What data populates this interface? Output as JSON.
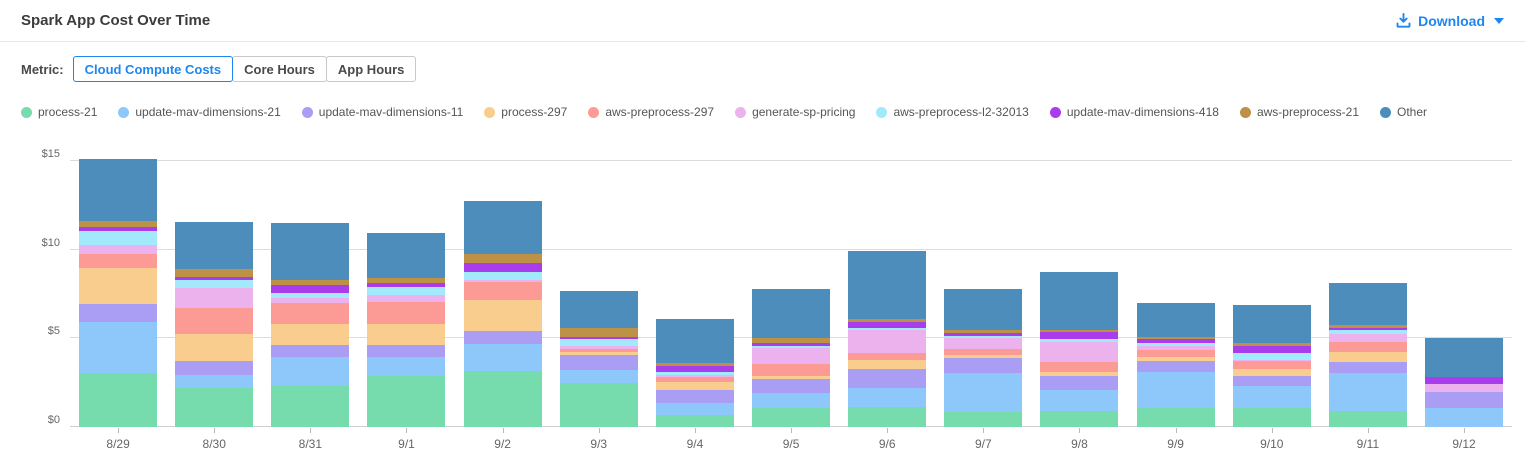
{
  "header": {
    "title": "Spark App Cost Over Time",
    "download_label": "Download"
  },
  "metric": {
    "label": "Metric:",
    "options": [
      {
        "label": "Cloud Compute Costs",
        "selected": true
      },
      {
        "label": "Core Hours",
        "selected": false
      },
      {
        "label": "App Hours",
        "selected": false
      }
    ]
  },
  "colors": {
    "accent_blue": "#1e86f0",
    "gridline": "#dcdcdc",
    "axis_text": "#666666"
  },
  "chart_data": {
    "type": "bar",
    "stacked": true,
    "title": "Spark App Cost Over Time",
    "xlabel": "",
    "ylabel": "",
    "ylim": [
      0,
      15
    ],
    "y_ticks": [
      "$0",
      "$5",
      "$10",
      "$15"
    ],
    "y_tick_values": [
      0,
      5,
      10,
      15
    ],
    "grid": true,
    "legend_position": "top",
    "categories": [
      "8/29",
      "8/30",
      "8/31",
      "9/1",
      "9/2",
      "9/3",
      "9/4",
      "9/5",
      "9/6",
      "9/7",
      "9/8",
      "9/9",
      "9/10",
      "9/11",
      "9/12"
    ],
    "series": [
      {
        "name": "process-21",
        "color": "#76dcae",
        "values": [
          3.05,
          2.2,
          2.3,
          2.9,
          3.15,
          2.5,
          0.7,
          1.1,
          1.15,
          0.85,
          0.9,
          1.05,
          1.05,
          0.9,
          0.0
        ]
      },
      {
        "name": "update-mav-dimensions-21",
        "color": "#8ec7f9",
        "values": [
          2.85,
          0.75,
          1.65,
          1.05,
          1.55,
          0.7,
          0.65,
          0.8,
          1.05,
          2.2,
          1.2,
          2.05,
          1.25,
          2.15,
          1.1
        ]
      },
      {
        "name": "update-mav-dimensions-11",
        "color": "#a99ef3",
        "values": [
          1.05,
          0.8,
          0.7,
          0.65,
          0.7,
          0.85,
          0.75,
          0.8,
          1.05,
          0.85,
          0.75,
          0.65,
          0.6,
          0.6,
          0.85
        ]
      },
      {
        "name": "process-297",
        "color": "#f9cd8d",
        "values": [
          2.0,
          1.5,
          1.15,
          1.2,
          1.75,
          0.2,
          0.45,
          0.2,
          0.55,
          0.15,
          0.25,
          0.2,
          0.35,
          0.6,
          0.0
        ]
      },
      {
        "name": "aws-preprocess-297",
        "color": "#fc9a95",
        "values": [
          0.8,
          1.45,
          1.2,
          1.25,
          1.05,
          0.15,
          0.25,
          0.65,
          0.4,
          0.35,
          0.55,
          0.4,
          0.45,
          0.55,
          0.0
        ]
      },
      {
        "name": "generate-sp-pricing",
        "color": "#ecb2ee",
        "values": [
          0.5,
          1.15,
          0.25,
          0.4,
          0.1,
          0.15,
          0.15,
          0.9,
          1.25,
          0.6,
          1.15,
          0.2,
          0.1,
          0.45,
          0.45
        ]
      },
      {
        "name": "aws-preprocess-l2-32013",
        "color": "#a2e9fb",
        "values": [
          0.8,
          0.45,
          0.3,
          0.45,
          0.45,
          0.4,
          0.15,
          0.15,
          0.15,
          0.15,
          0.15,
          0.2,
          0.4,
          0.2,
          0.0
        ]
      },
      {
        "name": "update-mav-dimensions-418",
        "color": "#a93ceb",
        "values": [
          0.25,
          0.15,
          0.45,
          0.2,
          0.5,
          0.15,
          0.35,
          0.15,
          0.35,
          0.15,
          0.4,
          0.2,
          0.35,
          0.15,
          0.4
        ]
      },
      {
        "name": "aws-preprocess-21",
        "color": "#bd9146",
        "values": [
          0.3,
          0.45,
          0.3,
          0.3,
          0.5,
          0.5,
          0.15,
          0.25,
          0.15,
          0.15,
          0.15,
          0.15,
          0.2,
          0.15,
          0.0
        ]
      },
      {
        "name": "Other",
        "color": "#4c8dbb",
        "values": [
          3.5,
          2.65,
          3.2,
          2.55,
          3.0,
          2.05,
          2.5,
          2.8,
          3.85,
          2.35,
          3.25,
          1.9,
          2.15,
          2.4,
          2.25
        ]
      }
    ]
  }
}
